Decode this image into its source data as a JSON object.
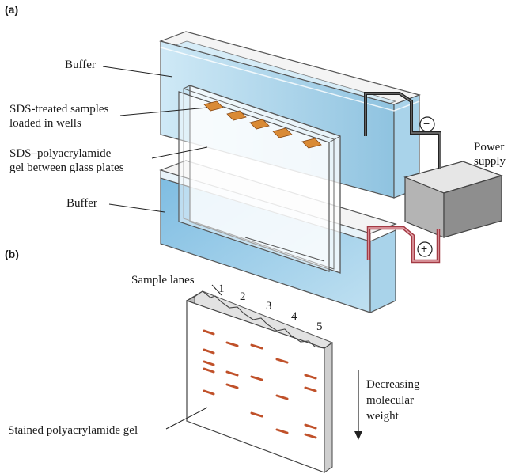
{
  "panels": {
    "a": "(a)",
    "b": "(b)"
  },
  "labels": {
    "buffer_top": "Buffer",
    "sds_samples_1": "SDS-treated samples",
    "sds_samples_2": "loaded in wells",
    "gel_1": "SDS–polyacrylamide",
    "gel_2": "gel between glass plates",
    "buffer_bottom": "Buffer",
    "power_1": "Power",
    "power_2": "supply",
    "minus": "−",
    "plus": "+",
    "sample_lanes": "Sample lanes",
    "lanes": [
      "1",
      "2",
      "3",
      "4",
      "5"
    ],
    "direction_1": "Decreasing",
    "direction_2": "molecular",
    "direction_3": "weight",
    "stained_gel": "Stained polyacrylamide gel"
  },
  "colors": {
    "buffer": "#b9dcee",
    "band": "#c0512a",
    "sample": "#d98a35",
    "cathode_wire": "#222222",
    "anode_wire": "#c0505a",
    "box": "#9a9a9a"
  }
}
